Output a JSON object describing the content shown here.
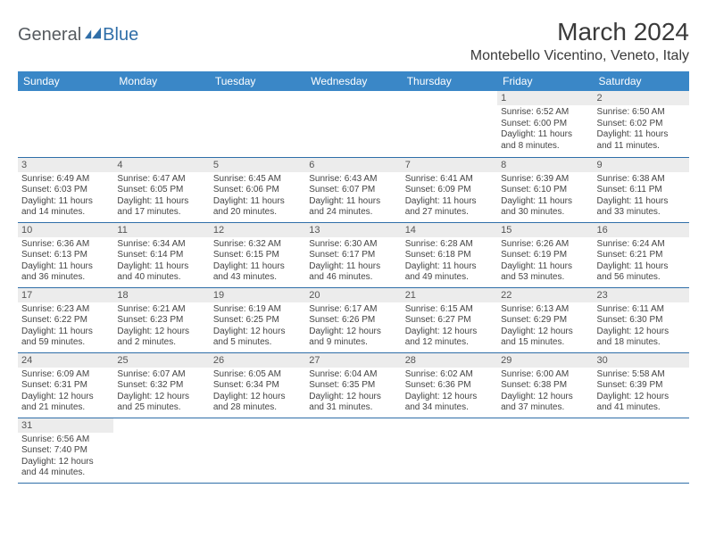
{
  "logo": {
    "text1": "General",
    "text2": "Blue"
  },
  "title": "March 2024",
  "location": "Montebello Vicentino, Veneto, Italy",
  "colors": {
    "header_bg": "#3a87c7",
    "header_text": "#ffffff",
    "daynum_bg": "#ececec",
    "border": "#2f6ea8"
  },
  "weekdays": [
    "Sunday",
    "Monday",
    "Tuesday",
    "Wednesday",
    "Thursday",
    "Friday",
    "Saturday"
  ],
  "weeks": [
    [
      null,
      null,
      null,
      null,
      null,
      {
        "num": "1",
        "sunrise": "Sunrise: 6:52 AM",
        "sunset": "Sunset: 6:00 PM",
        "daylight1": "Daylight: 11 hours",
        "daylight2": "and 8 minutes."
      },
      {
        "num": "2",
        "sunrise": "Sunrise: 6:50 AM",
        "sunset": "Sunset: 6:02 PM",
        "daylight1": "Daylight: 11 hours",
        "daylight2": "and 11 minutes."
      }
    ],
    [
      {
        "num": "3",
        "sunrise": "Sunrise: 6:49 AM",
        "sunset": "Sunset: 6:03 PM",
        "daylight1": "Daylight: 11 hours",
        "daylight2": "and 14 minutes."
      },
      {
        "num": "4",
        "sunrise": "Sunrise: 6:47 AM",
        "sunset": "Sunset: 6:05 PM",
        "daylight1": "Daylight: 11 hours",
        "daylight2": "and 17 minutes."
      },
      {
        "num": "5",
        "sunrise": "Sunrise: 6:45 AM",
        "sunset": "Sunset: 6:06 PM",
        "daylight1": "Daylight: 11 hours",
        "daylight2": "and 20 minutes."
      },
      {
        "num": "6",
        "sunrise": "Sunrise: 6:43 AM",
        "sunset": "Sunset: 6:07 PM",
        "daylight1": "Daylight: 11 hours",
        "daylight2": "and 24 minutes."
      },
      {
        "num": "7",
        "sunrise": "Sunrise: 6:41 AM",
        "sunset": "Sunset: 6:09 PM",
        "daylight1": "Daylight: 11 hours",
        "daylight2": "and 27 minutes."
      },
      {
        "num": "8",
        "sunrise": "Sunrise: 6:39 AM",
        "sunset": "Sunset: 6:10 PM",
        "daylight1": "Daylight: 11 hours",
        "daylight2": "and 30 minutes."
      },
      {
        "num": "9",
        "sunrise": "Sunrise: 6:38 AM",
        "sunset": "Sunset: 6:11 PM",
        "daylight1": "Daylight: 11 hours",
        "daylight2": "and 33 minutes."
      }
    ],
    [
      {
        "num": "10",
        "sunrise": "Sunrise: 6:36 AM",
        "sunset": "Sunset: 6:13 PM",
        "daylight1": "Daylight: 11 hours",
        "daylight2": "and 36 minutes."
      },
      {
        "num": "11",
        "sunrise": "Sunrise: 6:34 AM",
        "sunset": "Sunset: 6:14 PM",
        "daylight1": "Daylight: 11 hours",
        "daylight2": "and 40 minutes."
      },
      {
        "num": "12",
        "sunrise": "Sunrise: 6:32 AM",
        "sunset": "Sunset: 6:15 PM",
        "daylight1": "Daylight: 11 hours",
        "daylight2": "and 43 minutes."
      },
      {
        "num": "13",
        "sunrise": "Sunrise: 6:30 AM",
        "sunset": "Sunset: 6:17 PM",
        "daylight1": "Daylight: 11 hours",
        "daylight2": "and 46 minutes."
      },
      {
        "num": "14",
        "sunrise": "Sunrise: 6:28 AM",
        "sunset": "Sunset: 6:18 PM",
        "daylight1": "Daylight: 11 hours",
        "daylight2": "and 49 minutes."
      },
      {
        "num": "15",
        "sunrise": "Sunrise: 6:26 AM",
        "sunset": "Sunset: 6:19 PM",
        "daylight1": "Daylight: 11 hours",
        "daylight2": "and 53 minutes."
      },
      {
        "num": "16",
        "sunrise": "Sunrise: 6:24 AM",
        "sunset": "Sunset: 6:21 PM",
        "daylight1": "Daylight: 11 hours",
        "daylight2": "and 56 minutes."
      }
    ],
    [
      {
        "num": "17",
        "sunrise": "Sunrise: 6:23 AM",
        "sunset": "Sunset: 6:22 PM",
        "daylight1": "Daylight: 11 hours",
        "daylight2": "and 59 minutes."
      },
      {
        "num": "18",
        "sunrise": "Sunrise: 6:21 AM",
        "sunset": "Sunset: 6:23 PM",
        "daylight1": "Daylight: 12 hours",
        "daylight2": "and 2 minutes."
      },
      {
        "num": "19",
        "sunrise": "Sunrise: 6:19 AM",
        "sunset": "Sunset: 6:25 PM",
        "daylight1": "Daylight: 12 hours",
        "daylight2": "and 5 minutes."
      },
      {
        "num": "20",
        "sunrise": "Sunrise: 6:17 AM",
        "sunset": "Sunset: 6:26 PM",
        "daylight1": "Daylight: 12 hours",
        "daylight2": "and 9 minutes."
      },
      {
        "num": "21",
        "sunrise": "Sunrise: 6:15 AM",
        "sunset": "Sunset: 6:27 PM",
        "daylight1": "Daylight: 12 hours",
        "daylight2": "and 12 minutes."
      },
      {
        "num": "22",
        "sunrise": "Sunrise: 6:13 AM",
        "sunset": "Sunset: 6:29 PM",
        "daylight1": "Daylight: 12 hours",
        "daylight2": "and 15 minutes."
      },
      {
        "num": "23",
        "sunrise": "Sunrise: 6:11 AM",
        "sunset": "Sunset: 6:30 PM",
        "daylight1": "Daylight: 12 hours",
        "daylight2": "and 18 minutes."
      }
    ],
    [
      {
        "num": "24",
        "sunrise": "Sunrise: 6:09 AM",
        "sunset": "Sunset: 6:31 PM",
        "daylight1": "Daylight: 12 hours",
        "daylight2": "and 21 minutes."
      },
      {
        "num": "25",
        "sunrise": "Sunrise: 6:07 AM",
        "sunset": "Sunset: 6:32 PM",
        "daylight1": "Daylight: 12 hours",
        "daylight2": "and 25 minutes."
      },
      {
        "num": "26",
        "sunrise": "Sunrise: 6:05 AM",
        "sunset": "Sunset: 6:34 PM",
        "daylight1": "Daylight: 12 hours",
        "daylight2": "and 28 minutes."
      },
      {
        "num": "27",
        "sunrise": "Sunrise: 6:04 AM",
        "sunset": "Sunset: 6:35 PM",
        "daylight1": "Daylight: 12 hours",
        "daylight2": "and 31 minutes."
      },
      {
        "num": "28",
        "sunrise": "Sunrise: 6:02 AM",
        "sunset": "Sunset: 6:36 PM",
        "daylight1": "Daylight: 12 hours",
        "daylight2": "and 34 minutes."
      },
      {
        "num": "29",
        "sunrise": "Sunrise: 6:00 AM",
        "sunset": "Sunset: 6:38 PM",
        "daylight1": "Daylight: 12 hours",
        "daylight2": "and 37 minutes."
      },
      {
        "num": "30",
        "sunrise": "Sunrise: 5:58 AM",
        "sunset": "Sunset: 6:39 PM",
        "daylight1": "Daylight: 12 hours",
        "daylight2": "and 41 minutes."
      }
    ],
    [
      {
        "num": "31",
        "sunrise": "Sunrise: 6:56 AM",
        "sunset": "Sunset: 7:40 PM",
        "daylight1": "Daylight: 12 hours",
        "daylight2": "and 44 minutes."
      },
      null,
      null,
      null,
      null,
      null,
      null
    ]
  ]
}
